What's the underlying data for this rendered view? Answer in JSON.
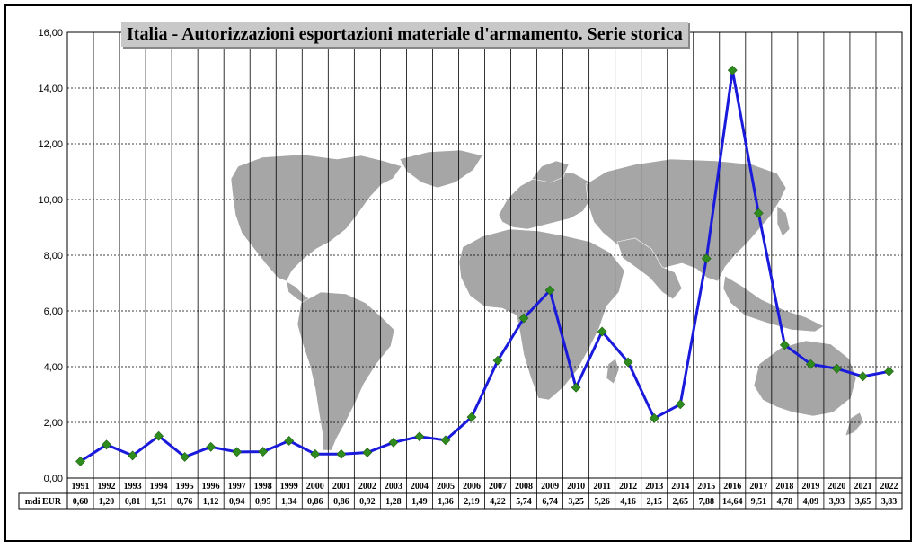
{
  "chart_data": {
    "type": "line",
    "title": "Italia - Autorizzazioni esportazioni materiale d'armamento. Serie storica",
    "categories": [
      "1991",
      "1992",
      "1993",
      "1994",
      "1995",
      "1996",
      "1997",
      "1998",
      "1999",
      "2000",
      "2001",
      "2002",
      "2003",
      "2004",
      "2005",
      "2006",
      "2007",
      "2008",
      "2009",
      "2010",
      "2011",
      "2012",
      "2013",
      "2014",
      "2015",
      "2016",
      "2017",
      "2018",
      "2019",
      "2020",
      "2021",
      "2022"
    ],
    "series": [
      {
        "name": "mdi EUR",
        "values": [
          0.6,
          1.2,
          0.81,
          1.51,
          0.76,
          1.12,
          0.94,
          0.95,
          1.34,
          0.86,
          0.86,
          0.92,
          1.28,
          1.49,
          1.36,
          2.19,
          4.22,
          5.74,
          6.74,
          3.25,
          5.26,
          4.16,
          2.15,
          2.65,
          7.88,
          14.64,
          9.51,
          4.78,
          4.09,
          3.93,
          3.65,
          3.83
        ],
        "labels": [
          "0,60",
          "1,20",
          "0,81",
          "1,51",
          "0,76",
          "1,12",
          "0,94",
          "0,95",
          "1,34",
          "0,86",
          "0,86",
          "0,92",
          "1,28",
          "1,49",
          "1,36",
          "2,19",
          "4,22",
          "5,74",
          "6,74",
          "3,25",
          "5,26",
          "4,16",
          "2,15",
          "2,65",
          "7,88",
          "14,64",
          "9,51",
          "4,78",
          "4,09",
          "3,93",
          "3,65",
          "3,83"
        ],
        "color": "#1a1adc",
        "marker_color": "#2e8b1e"
      }
    ],
    "yticks": [
      "0,00",
      "2,00",
      "4,00",
      "6,00",
      "8,00",
      "10,00",
      "12,00",
      "14,00",
      "16,00"
    ],
    "ylim": [
      0,
      16
    ],
    "grid": true,
    "table_row_label": "mdi EUR",
    "background": "world-map",
    "map_color": "#a6a6a6"
  }
}
